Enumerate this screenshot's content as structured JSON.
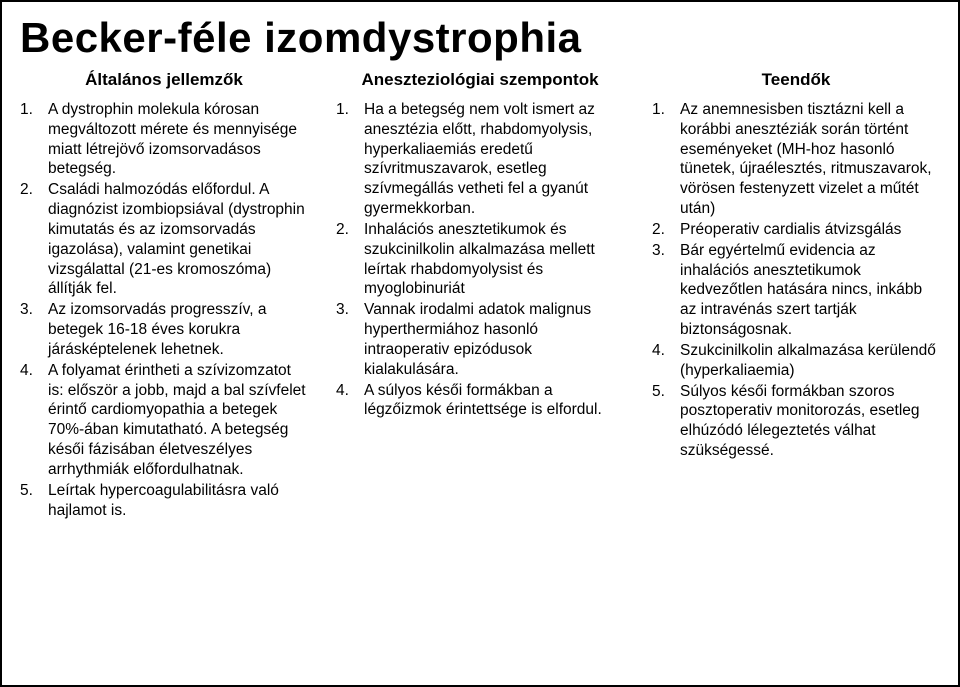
{
  "title": "Becker-féle izomdystrophia",
  "columns": [
    {
      "header": "Általános jellemzők",
      "items": [
        "A dystrophin molekula kórosan megváltozott mérete és mennyisége miatt létrejövő izomsorvadásos betegség.",
        "Családi halmozódás előfordul. A diagnózist izombiopsiával (dystrophin kimutatás és az izomsorvadás igazolása), valamint genetikai vizsgálattal (21-es kromoszóma) állítják fel.",
        "Az izomsorvadás progresszív, a betegek 16-18 éves korukra járásképtelenek lehetnek.",
        "A folyamat érintheti a szívizomzatot is: először a jobb, majd a bal szívfelet érintő cardiomyopathia a betegek 70%-ában kimutatható. A betegség késői fázisában életveszélyes arrhythmiák előfordulhatnak.",
        "Leírtak hypercoagulabilitásra való hajlamot is."
      ]
    },
    {
      "header": "Aneszteziológiai szempontok",
      "items": [
        "Ha a betegség nem volt ismert az anesztézia előtt, rhabdomyolysis, hyperkaliaemiás eredetű szívritmuszavarok, esetleg szívmegállás vetheti fel a gyanút gyermekkorban.",
        "Inhalációs anesztetikumok és szukcinilkolin alkalmazása mellett leírtak rhabdomyolysist és myoglobinuriát",
        "Vannak irodalmi adatok malignus hyperthermiához hasonló intraoperativ epizódusok kialakulására.",
        "A súlyos késői formákban a légzőizmok érintettsége is elfordul."
      ]
    },
    {
      "header": "Teendők",
      "items": [
        "Az anemnesisben tisztázni kell a korábbi anesztéziák során történt eseményeket (MH-hoz hasonló tünetek, újraélesztés, ritmuszavarok, vörösen festenyzett vizelet a műtét után)",
        "Préoperativ cardialis átvizsgálás",
        "Bár egyértelmű evidencia az inhalációs anesztetikumok kedvezőtlen hatására nincs, inkább az intravénás szert tartják biztonságosnak.",
        "Szukcinilkolin alkalmazása kerülendő (hyperkaliaemia)",
        "Súlyos késői formákban szoros posztoperativ monitorozás, esetleg elhúzódó lélegeztetés válhat szükségessé."
      ]
    }
  ]
}
